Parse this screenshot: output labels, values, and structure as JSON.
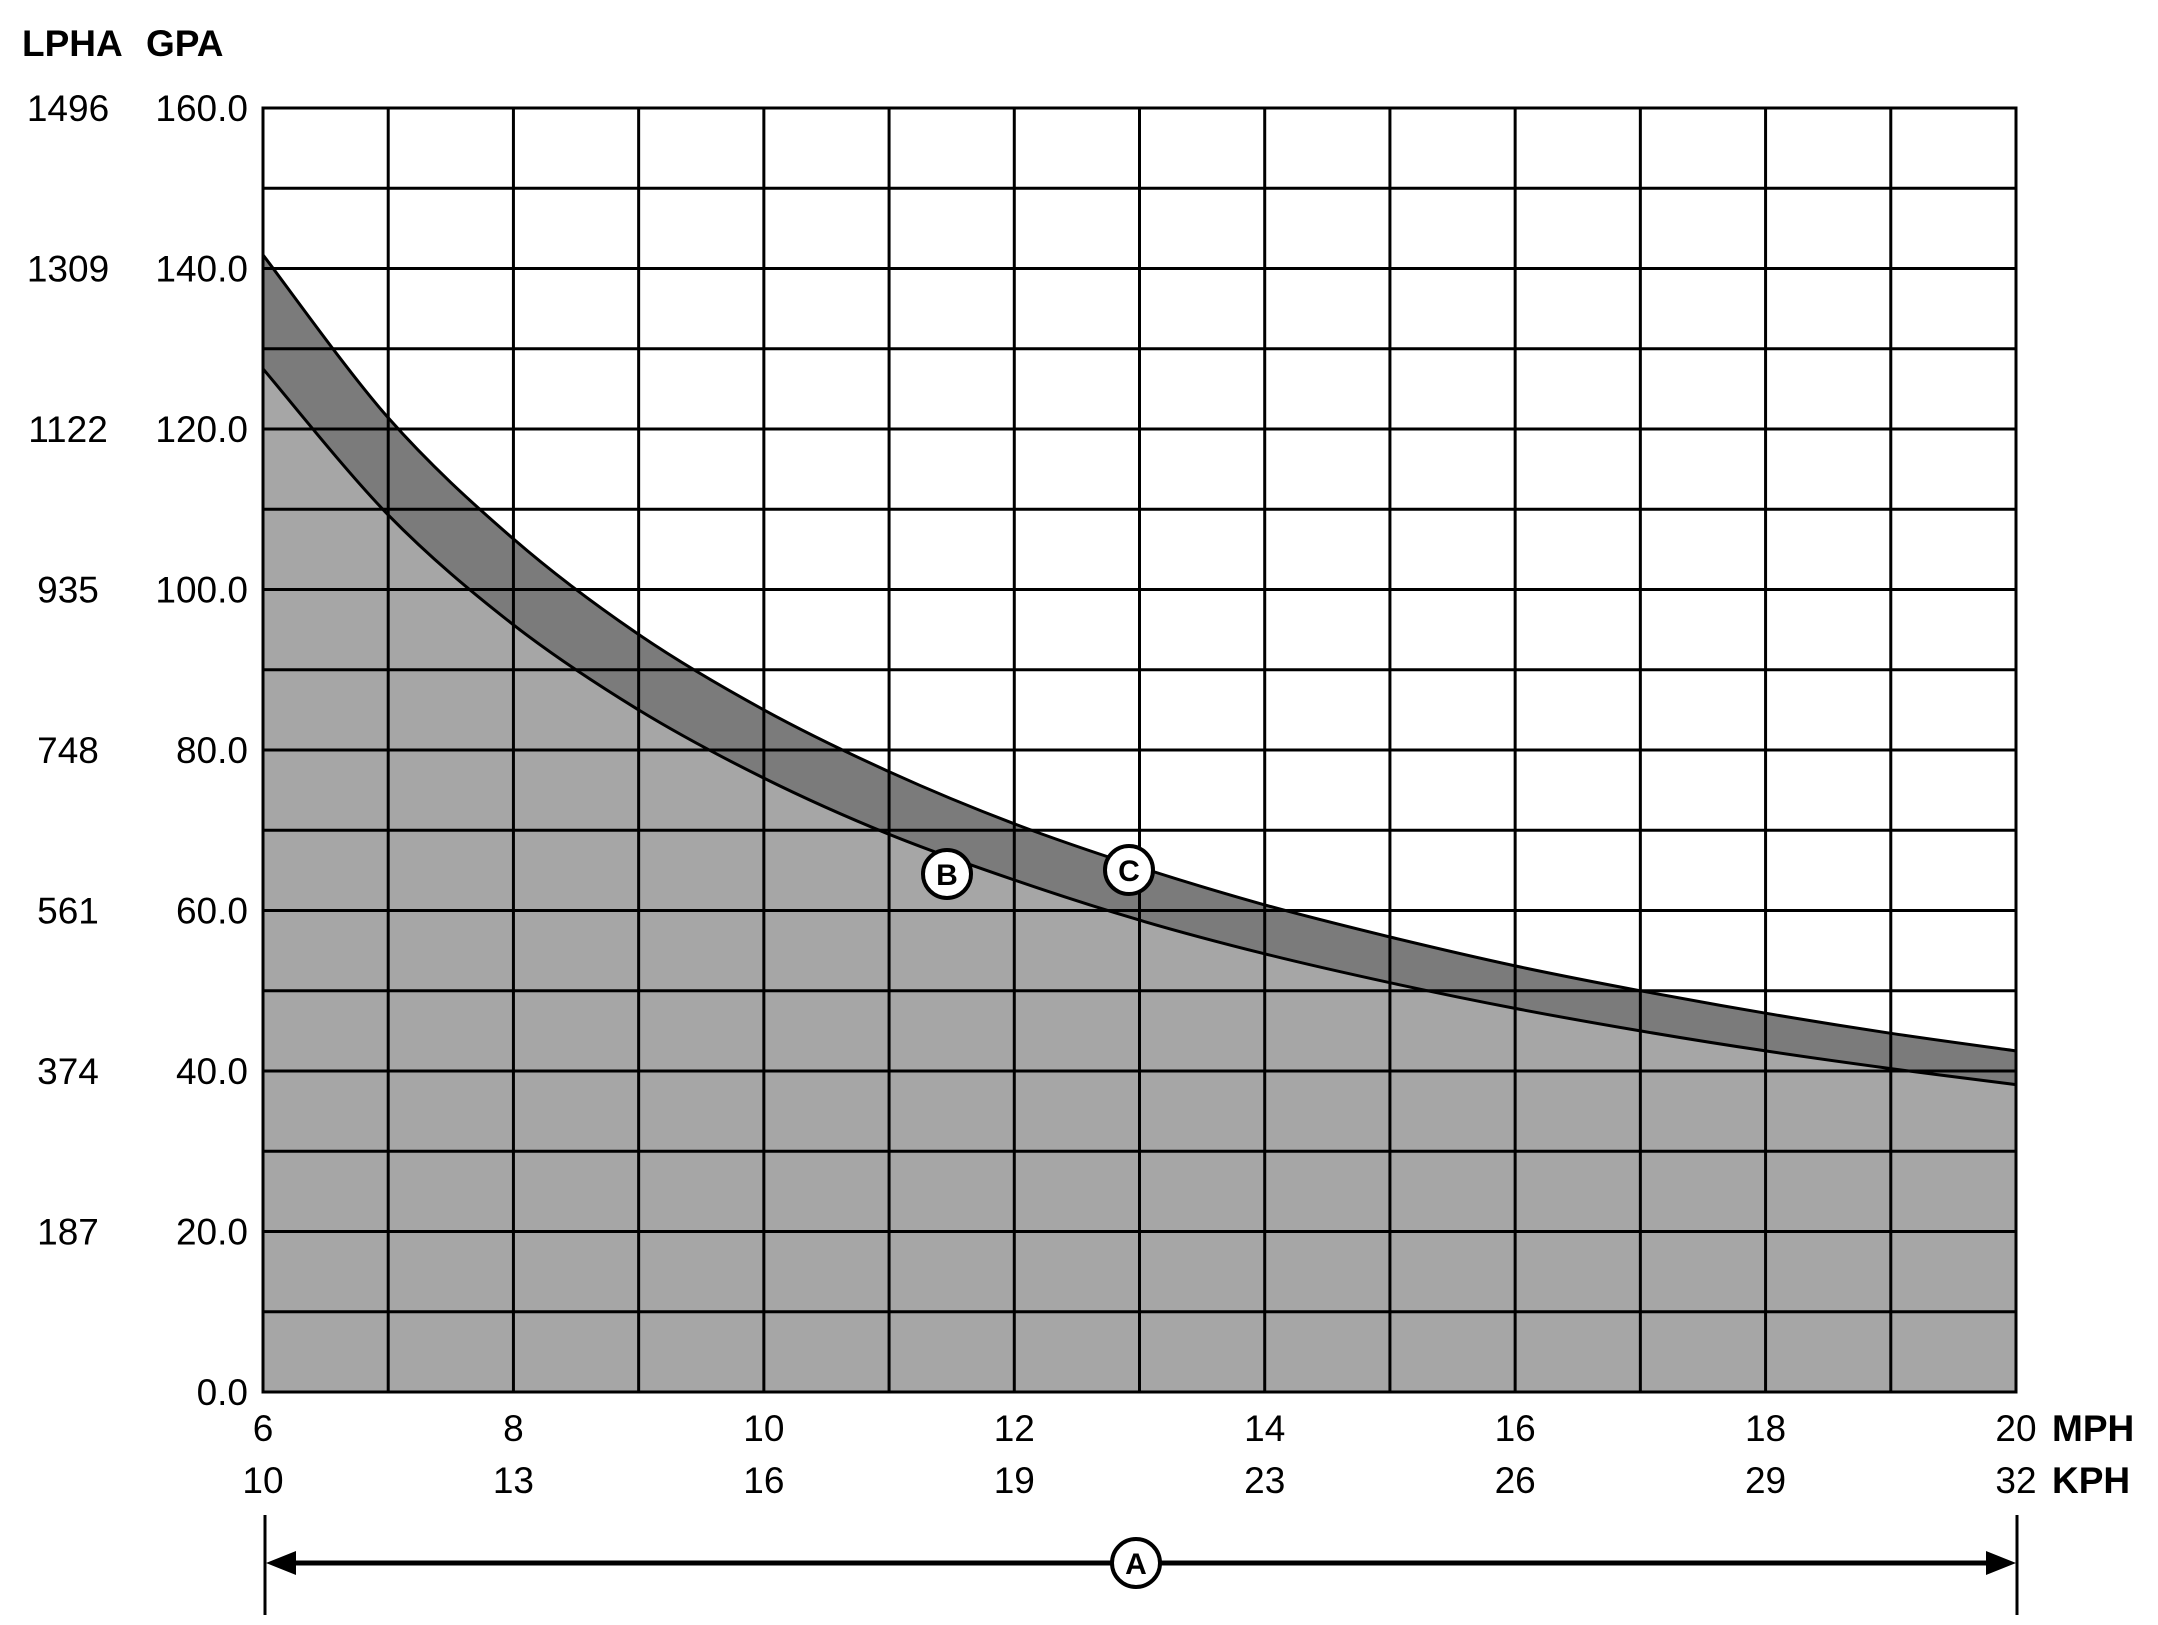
{
  "axis_headers": {
    "lpha": "LPHA",
    "gpa": "GPA",
    "mph": "MPH",
    "kph": "KPH"
  },
  "colors": {
    "band": "#7b7b7b",
    "fill": "#a6a6a6",
    "grid": "#000000",
    "background": "#ffffff"
  },
  "markers": {
    "a": "A",
    "b": "B",
    "c": "C"
  },
  "chart_data": {
    "type": "area",
    "title": "",
    "grid": true,
    "legend": "none",
    "x_unit": "MPH",
    "secondary_x_unit": "KPH",
    "y_unit": "GPA",
    "secondary_y_unit": "LPHA",
    "xlim": [
      6,
      20
    ],
    "ylim": [
      0,
      160
    ],
    "x_ticks": [
      6,
      8,
      10,
      12,
      14,
      16,
      18,
      20
    ],
    "x_tick_labels": [
      "6",
      "8",
      "10",
      "12",
      "14",
      "16",
      "18",
      "20"
    ],
    "x2_tick_labels": [
      "10",
      "13",
      "16",
      "19",
      "23",
      "26",
      "29",
      "32"
    ],
    "y_ticks": [
      0,
      20,
      40,
      60,
      80,
      100,
      120,
      140,
      160
    ],
    "y_tick_labels": [
      "0.0",
      "20.0",
      "40.0",
      "60.0",
      "80.0",
      "100.0",
      "120.0",
      "140.0",
      "160.0"
    ],
    "y2_tick_labels": [
      "",
      "187",
      "374",
      "561",
      "748",
      "935",
      "1122",
      "1309",
      "1496"
    ],
    "series": [
      {
        "name": "B",
        "x": [
          6,
          7,
          8,
          9,
          10,
          11,
          12,
          13,
          14,
          15,
          16,
          17,
          18,
          19,
          20
        ],
        "values": [
          127.5,
          109.3,
          95.6,
          85.0,
          76.5,
          69.5,
          63.8,
          58.8,
          54.6,
          51.0,
          47.8,
          45.0,
          42.5,
          40.3,
          38.3
        ]
      },
      {
        "name": "C",
        "x": [
          6,
          7,
          8,
          9,
          10,
          11,
          12,
          13,
          14,
          15,
          16,
          17,
          18,
          19,
          20
        ],
        "values": [
          141.7,
          121.4,
          106.3,
          94.4,
          85.0,
          77.3,
          70.8,
          65.4,
          60.7,
          56.7,
          53.1,
          50.0,
          47.2,
          44.7,
          42.5
        ]
      }
    ],
    "annotations": [
      {
        "label": "A",
        "meaning": "range arrow spanning",
        "x_from": 6,
        "x_to": 20
      },
      {
        "label": "B",
        "x": 11.5,
        "y": 65.5
      },
      {
        "label": "C",
        "x": 12.9,
        "y": 65.8
      }
    ]
  }
}
